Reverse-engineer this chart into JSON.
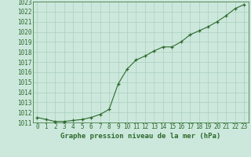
{
  "x": [
    0,
    1,
    2,
    3,
    4,
    5,
    6,
    7,
    8,
    9,
    10,
    11,
    12,
    13,
    14,
    15,
    16,
    17,
    18,
    19,
    20,
    21,
    22,
    23
  ],
  "y": [
    1011.5,
    1011.3,
    1011.1,
    1011.1,
    1011.2,
    1011.3,
    1011.5,
    1011.8,
    1012.3,
    1014.8,
    1016.3,
    1017.2,
    1017.6,
    1018.1,
    1018.5,
    1018.5,
    1019.0,
    1019.7,
    1020.1,
    1020.5,
    1021.0,
    1021.6,
    1022.3,
    1022.7
  ],
  "line_color": "#2d6a2d",
  "marker_color": "#2d6a2d",
  "bg_color": "#cce8dc",
  "grid_color": "#aacfbe",
  "xlabel": "Graphe pression niveau de la mer (hPa)",
  "xlabel_fontsize": 6.5,
  "tick_fontsize": 5.5,
  "ylim_min": 1011,
  "ylim_max": 1023,
  "xlim_min": -0.5,
  "xlim_max": 23.5,
  "ytick_step": 1,
  "line_color_dark": "#1a4a1a"
}
